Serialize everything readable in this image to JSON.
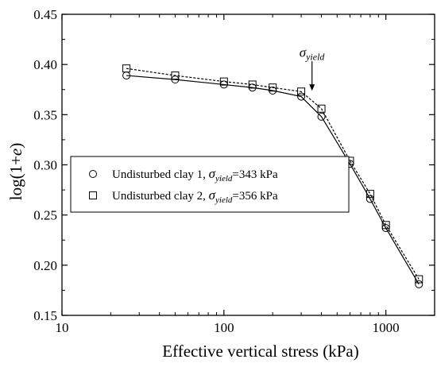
{
  "chart_data": {
    "type": "scatter",
    "x_scale": "log",
    "xlim": [
      10,
      2000
    ],
    "ylim": [
      0.15,
      0.45
    ],
    "x_ticks": [
      10,
      100,
      1000
    ],
    "x_tick_labels": [
      "10",
      "100",
      "1000"
    ],
    "y_ticks": [
      0.15,
      0.2,
      0.25,
      0.3,
      0.35,
      0.4,
      0.45
    ],
    "y_tick_labels": [
      "0.15",
      "0.20",
      "0.25",
      "0.30",
      "0.35",
      "0.40",
      "0.45"
    ],
    "xlabel": "Effective vertical stress (kPa)",
    "ylabel_parts": {
      "prefix": "log(1+",
      "italic": "e",
      "suffix": ")"
    },
    "grid": false,
    "legend_position": "center-left",
    "series": [
      {
        "name_parts": {
          "prefix": "Undisturbed clay 1, ",
          "sigma": "σ",
          "sub": "yield",
          "suffix": "=343 kPa"
        },
        "marker": "circle",
        "line_style": "solid",
        "x": [
          25,
          50,
          100,
          150,
          200,
          300,
          400,
          600,
          800,
          1000,
          1600
        ],
        "y": [
          0.389,
          0.385,
          0.38,
          0.377,
          0.374,
          0.368,
          0.348,
          0.301,
          0.266,
          0.237,
          0.181
        ]
      },
      {
        "name_parts": {
          "prefix": "Undisturbed clay 2, ",
          "sigma": "σ",
          "sub": "yield",
          "suffix": "=356 kPa"
        },
        "marker": "square",
        "line_style": "dashed",
        "x": [
          25,
          50,
          100,
          150,
          200,
          300,
          400,
          600,
          800,
          1000,
          1600
        ],
        "y": [
          0.396,
          0.389,
          0.383,
          0.38,
          0.377,
          0.373,
          0.356,
          0.304,
          0.271,
          0.24,
          0.186
        ]
      }
    ],
    "annotation": {
      "sigma": "σ",
      "sub": "yield",
      "x": 350,
      "y": 0.373
    }
  }
}
